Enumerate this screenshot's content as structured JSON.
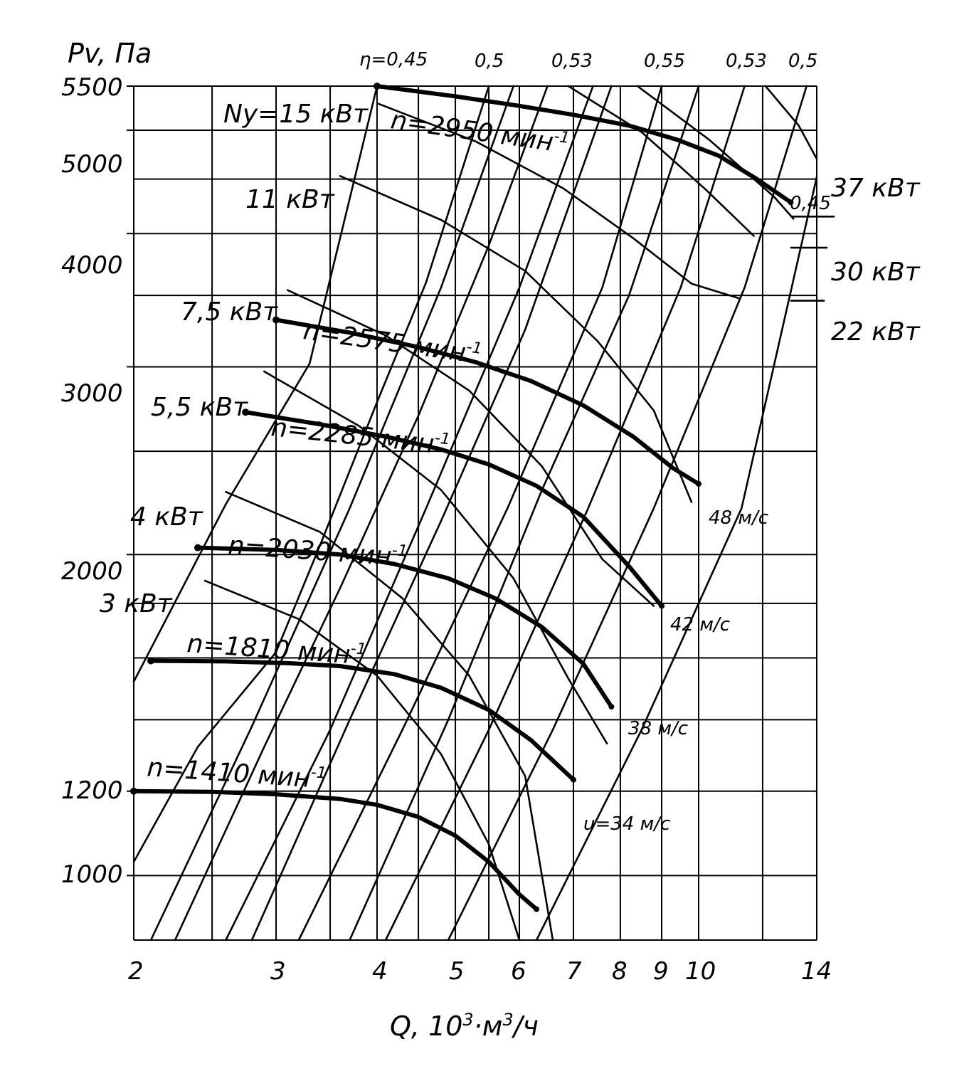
{
  "chart_data": {
    "type": "line",
    "title": "",
    "ylabel": "Pv, Па",
    "xlabel_parts": {
      "q": "Q, 10",
      "sup1": "3",
      "mid": "·м",
      "sup2": "3",
      "tail": "/ч"
    },
    "x_scale": "log",
    "y_scale": "log",
    "xlim": [
      2,
      14
    ],
    "ylim": [
      870,
      5500
    ],
    "x_ticks": [
      "2",
      "3",
      "4",
      "5",
      "6",
      "7",
      "8",
      "9",
      "10",
      "14"
    ],
    "y_ticks": [
      "5500",
      "5000",
      "4000",
      "3000",
      "2000",
      "1200",
      "1000"
    ],
    "speed_series": [
      {
        "name": "n=1410 мин",
        "sup": "-1",
        "points": [
          [
            2.0,
            1200
          ],
          [
            2.5,
            1198
          ],
          [
            3.0,
            1192
          ],
          [
            3.6,
            1180
          ],
          [
            4.0,
            1165
          ],
          [
            4.5,
            1135
          ],
          [
            5.0,
            1090
          ],
          [
            5.5,
            1030
          ],
          [
            6.0,
            960
          ],
          [
            6.3,
            930
          ]
        ]
      },
      {
        "name": "n=1810 мин",
        "sup": "-1",
        "points": [
          [
            2.1,
            1590
          ],
          [
            2.6,
            1588
          ],
          [
            3.1,
            1582
          ],
          [
            3.6,
            1572
          ],
          [
            4.2,
            1545
          ],
          [
            4.8,
            1500
          ],
          [
            5.5,
            1430
          ],
          [
            6.2,
            1340
          ],
          [
            7.0,
            1230
          ]
        ]
      },
      {
        "name": "n=2030 мин",
        "sup": "-1",
        "points": [
          [
            2.4,
            2030
          ],
          [
            3.0,
            2020
          ],
          [
            3.6,
            2000
          ],
          [
            4.2,
            1960
          ],
          [
            4.9,
            1900
          ],
          [
            5.6,
            1820
          ],
          [
            6.4,
            1710
          ],
          [
            7.2,
            1580
          ],
          [
            7.8,
            1440
          ]
        ]
      },
      {
        "name": "n=2285 мин",
        "sup": "-1",
        "points": [
          [
            2.75,
            2720
          ],
          [
            3.4,
            2650
          ],
          [
            4.1,
            2580
          ],
          [
            4.8,
            2510
          ],
          [
            5.5,
            2430
          ],
          [
            6.3,
            2320
          ],
          [
            7.2,
            2170
          ],
          [
            8.2,
            1950
          ],
          [
            9.0,
            1790
          ]
        ]
      },
      {
        "name": "n=2575 мин",
        "sup": "-1",
        "points": [
          [
            3.0,
            3320
          ],
          [
            3.7,
            3230
          ],
          [
            4.5,
            3130
          ],
          [
            5.3,
            3030
          ],
          [
            6.2,
            2910
          ],
          [
            7.2,
            2760
          ],
          [
            8.3,
            2580
          ],
          [
            9.3,
            2410
          ],
          [
            10.0,
            2330
          ]
        ]
      },
      {
        "name": "n=2950 мин",
        "sup": "-1",
        "points": [
          [
            4.0,
            5500
          ],
          [
            5.0,
            5380
          ],
          [
            6.0,
            5270
          ],
          [
            7.0,
            5170
          ],
          [
            8.2,
            5050
          ],
          [
            9.4,
            4900
          ],
          [
            10.6,
            4730
          ],
          [
            11.8,
            4500
          ],
          [
            13.0,
            4280
          ]
        ]
      }
    ],
    "power_series": [
      {
        "name": "3 кВт",
        "points": [
          [
            2.45,
            1890
          ],
          [
            3.2,
            1740
          ],
          [
            4.0,
            1540
          ],
          [
            4.8,
            1300
          ],
          [
            5.5,
            1070
          ],
          [
            6.0,
            870
          ]
        ]
      },
      {
        "name": "4 кВт",
        "points": [
          [
            2.6,
            2290
          ],
          [
            3.4,
            2100
          ],
          [
            4.3,
            1820
          ],
          [
            5.2,
            1540
          ],
          [
            6.1,
            1240
          ],
          [
            6.6,
            870
          ]
        ]
      },
      {
        "name": "5,5 кВт",
        "points": [
          [
            2.9,
            2970
          ],
          [
            3.8,
            2640
          ],
          [
            4.8,
            2300
          ],
          [
            5.9,
            1900
          ],
          [
            6.9,
            1530
          ],
          [
            7.7,
            1330
          ]
        ]
      },
      {
        "name": "7,5 кВт",
        "points": [
          [
            3.1,
            3540
          ],
          [
            4.1,
            3210
          ],
          [
            5.2,
            2850
          ],
          [
            6.4,
            2420
          ],
          [
            7.6,
            1980
          ],
          [
            8.8,
            1790
          ]
        ]
      },
      {
        "name": "11 кВт",
        "points": [
          [
            3.6,
            4530
          ],
          [
            4.8,
            4120
          ],
          [
            6.1,
            3690
          ],
          [
            7.5,
            3170
          ],
          [
            8.8,
            2730
          ],
          [
            9.8,
            2240
          ]
        ]
      },
      {
        "name": "15 кВт",
        "points": [
          [
            4.0,
            5300
          ],
          [
            5.3,
            4880
          ],
          [
            6.8,
            4410
          ],
          [
            8.3,
            3960
          ],
          [
            9.8,
            3590
          ],
          [
            11.2,
            3480
          ]
        ]
      },
      {
        "name": "22 кВт",
        "points": [
          [
            6.9,
            5500
          ],
          [
            8.5,
            4980
          ],
          [
            10.2,
            4400
          ],
          [
            11.7,
            3980
          ]
        ]
      },
      {
        "name": "30 кВт",
        "points": [
          [
            8.4,
            5500
          ],
          [
            10.3,
            4900
          ],
          [
            12.4,
            4330
          ],
          [
            13.1,
            4130
          ]
        ]
      },
      {
        "name": "37 кВт",
        "points": [
          [
            12.1,
            5500
          ],
          [
            13.3,
            5050
          ],
          [
            14.0,
            4700
          ]
        ]
      }
    ],
    "efficiency_lines": [
      {
        "label": "η=0,45",
        "points": [
          [
            2.0,
            1520
          ],
          [
            2.6,
            2230
          ],
          [
            3.3,
            3020
          ],
          [
            4.0,
            5500
          ]
        ]
      },
      {
        "label": "0,5",
        "points": [
          [
            2.1,
            870
          ],
          [
            2.8,
            1380
          ],
          [
            3.7,
            2210
          ],
          [
            4.8,
            3560
          ],
          [
            5.9,
            5500
          ]
        ]
      },
      {
        "label": "0,53",
        "points": [
          [
            2.6,
            870
          ],
          [
            3.5,
            1370
          ],
          [
            4.6,
            2210
          ],
          [
            6.0,
            3560
          ],
          [
            7.4,
            5500
          ]
        ]
      },
      {
        "label": "0,55",
        "points": [
          [
            3.2,
            870
          ],
          [
            4.3,
            1370
          ],
          [
            5.8,
            2210
          ],
          [
            7.6,
            3560
          ],
          [
            9.0,
            5500
          ]
        ]
      },
      {
        "label": "0,53",
        "points": [
          [
            4.1,
            870
          ],
          [
            5.5,
            1370
          ],
          [
            7.3,
            2210
          ],
          [
            9.5,
            3560
          ],
          [
            11.4,
            5500
          ]
        ]
      },
      {
        "label": "0,5",
        "points": [
          [
            4.9,
            870
          ],
          [
            6.6,
            1370
          ],
          [
            8.8,
            2210
          ],
          [
            11.4,
            3560
          ],
          [
            13.6,
            5500
          ]
        ]
      },
      {
        "label": "0,45",
        "points": [
          [
            6.3,
            870
          ],
          [
            8.5,
            1370
          ],
          [
            11.3,
            2210
          ],
          [
            14.0,
            4520
          ]
        ]
      }
    ],
    "speed_limit_lines": [
      {
        "label": "u=34 м/с",
        "points": [
          [
            2.0,
            1030
          ],
          [
            2.4,
            1320
          ],
          [
            3.0,
            1620
          ],
          [
            3.4,
            2040
          ],
          [
            4.0,
            2780
          ],
          [
            4.6,
            3600
          ],
          [
            5.5,
            5500
          ]
        ]
      },
      {
        "label": "38 м/с",
        "points": [
          [
            2.25,
            870
          ],
          [
            2.9,
            1320
          ],
          [
            3.6,
            1860
          ],
          [
            4.5,
            2700
          ],
          [
            5.5,
            3900
          ],
          [
            6.5,
            5500
          ]
        ]
      },
      {
        "label": "42 м/с",
        "points": [
          [
            2.8,
            870
          ],
          [
            3.7,
            1400
          ],
          [
            4.8,
            2150
          ],
          [
            6.1,
            3250
          ],
          [
            7.8,
            5500
          ]
        ]
      },
      {
        "label": "48 м/с",
        "points": [
          [
            3.7,
            870
          ],
          [
            4.9,
            1400
          ],
          [
            6.4,
            2300
          ],
          [
            8.2,
            3500
          ],
          [
            10.0,
            5500
          ]
        ]
      }
    ],
    "velocity_labels": [
      "u=34 м/с",
      "38 м/с",
      "42 м/с",
      "48 м/с"
    ],
    "power_labels": [
      "Ny=15 кВт",
      "11 кВт",
      "7,5 кВт",
      "5,5 кВт",
      "4 кВт",
      "3 кВт",
      "37 кВт",
      "30 кВт",
      "22 кВт"
    ],
    "efficiency_labels": [
      "η=0,45",
      "0,5",
      "0,53",
      "0,55",
      "0,53",
      "0,5",
      "0,45"
    ],
    "grid": true
  }
}
